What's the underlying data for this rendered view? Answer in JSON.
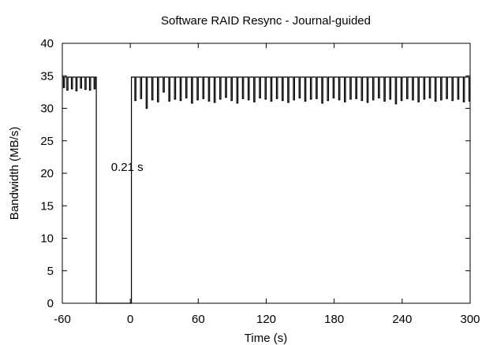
{
  "chart_data": {
    "type": "line",
    "title": "Software RAID Resync - Journal-guided",
    "xlabel": "Time (s)",
    "ylabel": "Bandwidth (MB/s)",
    "xlim": [
      -60,
      300
    ],
    "ylim": [
      0,
      40
    ],
    "xticks": [
      -60,
      0,
      60,
      120,
      180,
      240,
      300
    ],
    "yticks": [
      0,
      5,
      10,
      15,
      20,
      25,
      30,
      35,
      40
    ],
    "grid": false,
    "legend": "none",
    "line_color": "#000000",
    "annotations": [
      {
        "text": "0.21 s",
        "x": -17,
        "y": 21
      }
    ],
    "series": [
      {
        "x": {
          "start": -60,
          "step": 1
        },
        "values": [
          34.8,
          33.2,
          34.8,
          34.8,
          32.8,
          34.8,
          34.8,
          34.8,
          33.0,
          34.8,
          34.8,
          34.8,
          32.7,
          34.8,
          34.8,
          34.8,
          33.1,
          34.8,
          34.8,
          34.8,
          32.9,
          34.8,
          34.8,
          34.8,
          32.8,
          34.8,
          34.8,
          34.8,
          33.0,
          34.8,
          0,
          0,
          0,
          0,
          0,
          0,
          0,
          0,
          0,
          0,
          0,
          0,
          0,
          0,
          0,
          0,
          0,
          0,
          0,
          0,
          0,
          0,
          0,
          0,
          0,
          0,
          0,
          0,
          0,
          0,
          0,
          34.8,
          34.8,
          34.8,
          31.2,
          34.8,
          34.8,
          34.8,
          34.8,
          31.5,
          34.8,
          34.8,
          34.8,
          34.8,
          30.0,
          34.8,
          34.8,
          34.8,
          34.8,
          31.3,
          34.8,
          34.8,
          34.8,
          34.8,
          31.0,
          34.8,
          34.8,
          34.8,
          34.8,
          32.5,
          34.8,
          34.8,
          34.8,
          34.8,
          31.1,
          34.8,
          34.8,
          34.8,
          34.8,
          31.4,
          34.8,
          34.8,
          34.8,
          34.8,
          31.2,
          34.8,
          34.8,
          34.8,
          34.8,
          31.6,
          34.8,
          34.8,
          34.8,
          34.8,
          30.8,
          34.8,
          34.8,
          34.8,
          34.8,
          31.3,
          34.8,
          34.8,
          34.8,
          34.8,
          31.5,
          34.8,
          34.8,
          34.8,
          34.8,
          31.1,
          34.8,
          34.8,
          34.8,
          34.8,
          30.9,
          34.8,
          34.8,
          34.8,
          34.8,
          31.4,
          34.8,
          34.8,
          34.8,
          34.8,
          31.7,
          34.8,
          34.8,
          34.8,
          34.8,
          31.2,
          34.8,
          34.8,
          34.8,
          34.8,
          30.8,
          34.8,
          34.8,
          34.8,
          34.8,
          31.5,
          34.8,
          34.8,
          34.8,
          34.8,
          31.3,
          34.8,
          34.8,
          34.8,
          34.8,
          31.0,
          34.8,
          34.8,
          34.8,
          34.8,
          31.6,
          34.8,
          34.8,
          34.8,
          34.8,
          31.4,
          34.8,
          34.8,
          34.8,
          34.8,
          31.1,
          34.8,
          34.8,
          34.8,
          34.8,
          31.5,
          34.8,
          34.8,
          34.8,
          34.8,
          31.2,
          34.8,
          34.8,
          34.8,
          34.8,
          30.9,
          34.8,
          34.8,
          34.8,
          34.8,
          31.3,
          34.8,
          34.8,
          34.8,
          34.8,
          31.6,
          34.8,
          34.8,
          34.8,
          34.8,
          31.1,
          34.8,
          34.8,
          34.8,
          34.8,
          31.4,
          34.8,
          34.8,
          34.8,
          34.8,
          31.5,
          34.8,
          34.8,
          34.8,
          34.8,
          30.8,
          34.8,
          34.8,
          34.8,
          34.8,
          31.2,
          34.8,
          34.8,
          34.8,
          34.8,
          31.6,
          34.8,
          34.8,
          34.8,
          34.8,
          31.3,
          34.8,
          34.8,
          34.8,
          34.8,
          31.0,
          34.8,
          34.8,
          34.8,
          34.8,
          31.4,
          34.8,
          34.8,
          34.8,
          34.8,
          31.5,
          34.8,
          34.8,
          34.8,
          34.8,
          31.2,
          34.8,
          34.8,
          34.8,
          34.8,
          30.9,
          34.8,
          34.8,
          34.8,
          34.8,
          31.3,
          34.8,
          34.8,
          34.8,
          34.8,
          31.6,
          34.8,
          34.8,
          34.8,
          34.8,
          31.1,
          34.8,
          34.8,
          34.8,
          34.8,
          31.4,
          34.8,
          34.8,
          34.8,
          34.8,
          30.7,
          34.8,
          34.8,
          34.8,
          34.8,
          31.2,
          34.8,
          34.8,
          34.8,
          34.8,
          31.5,
          34.8,
          34.8,
          34.8,
          34.8,
          31.3,
          34.8,
          34.8,
          34.8,
          34.8,
          31.0,
          34.8,
          34.8,
          34.8,
          34.8,
          31.4,
          34.8,
          34.8,
          34.8,
          34.8,
          31.6,
          34.8,
          34.8,
          34.8,
          34.8,
          31.1,
          34.8,
          34.8,
          34.8,
          34.8,
          31.3,
          34.8,
          34.8,
          34.8,
          34.8,
          31.5,
          34.8,
          34.8,
          34.8,
          34.8,
          31.2,
          34.8,
          34.8,
          34.8,
          34.8,
          31.4,
          34.8,
          34.8,
          34.8,
          34.8,
          31.0,
          34.8,
          34.8,
          34.8,
          34.8,
          31.1,
          34.8
        ]
      }
    ]
  }
}
